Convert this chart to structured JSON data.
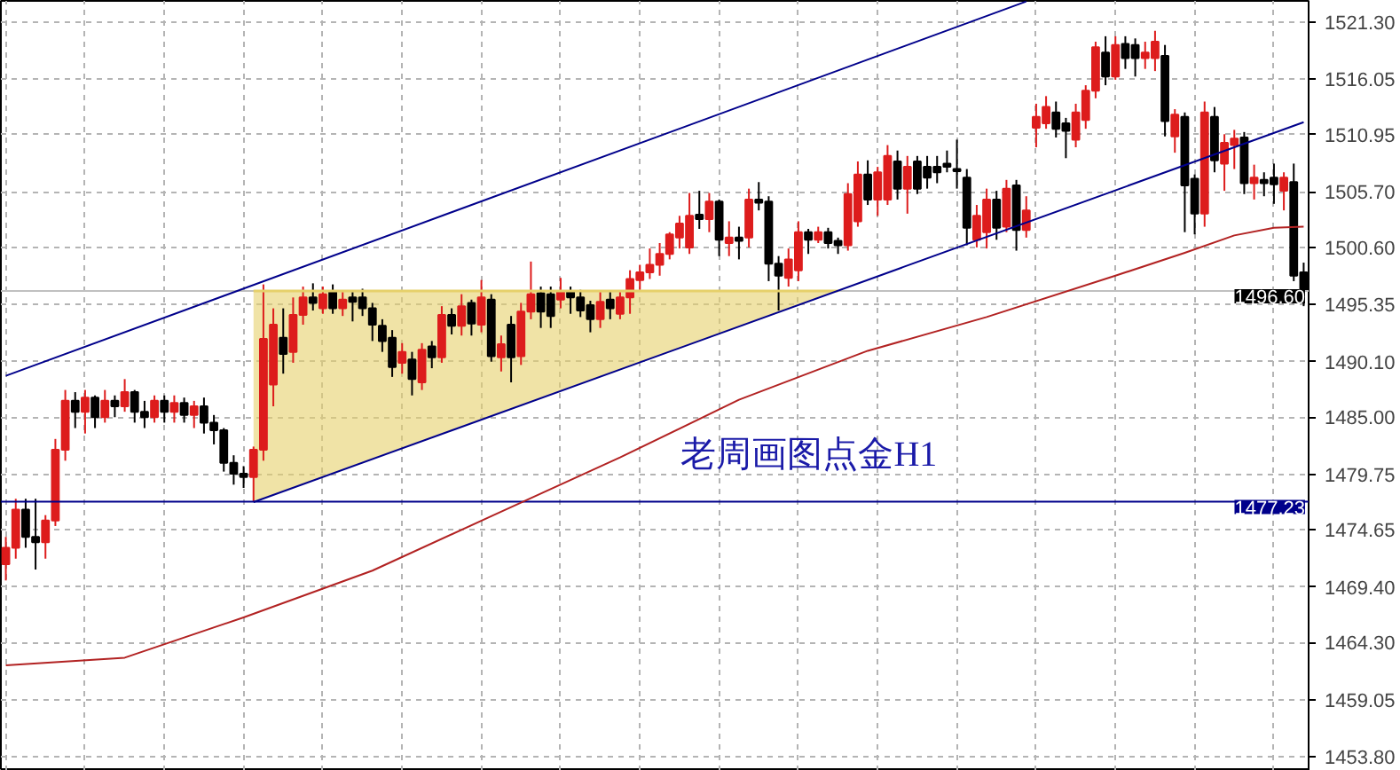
{
  "chart_data": {
    "type": "candlestick",
    "categories": [
      null,
      null,
      null,
      null,
      null,
      null,
      null,
      null,
      null,
      null,
      null,
      null,
      null,
      null,
      null,
      null,
      null,
      null,
      null,
      null,
      null,
      null,
      null,
      null,
      null,
      null,
      null,
      null,
      null,
      null,
      null,
      null,
      null,
      null,
      null,
      null,
      null,
      null,
      null,
      null,
      null,
      null,
      null,
      null,
      null,
      null,
      null,
      null,
      null,
      null,
      null,
      null,
      null,
      null,
      null,
      null,
      null,
      null,
      null,
      null,
      null,
      null,
      null,
      null,
      null,
      null,
      null,
      null,
      null,
      null,
      null,
      null,
      null,
      null,
      null,
      null,
      null,
      null,
      null,
      null,
      null,
      null,
      null,
      null,
      null,
      null,
      null,
      null,
      null,
      null,
      null,
      null,
      null,
      null,
      null,
      null,
      null,
      null,
      null,
      null,
      null,
      null,
      null,
      null,
      null,
      null,
      null,
      null,
      null,
      null,
      null,
      null,
      null,
      null,
      null,
      null,
      null,
      null,
      null,
      null,
      null,
      null,
      null,
      null,
      null,
      null,
      null,
      null,
      null,
      null,
      null,
      null
    ],
    "ohlc": [
      [
        1471.5,
        1474,
        1470,
        1473
      ],
      [
        1473,
        1477.5,
        1472,
        1476.5
      ],
      [
        1476.5,
        1477.5,
        1473,
        1474
      ],
      [
        1474,
        1477.5,
        1471,
        1473.5
      ],
      [
        1473.5,
        1476,
        1472,
        1475.5
      ],
      [
        1475.5,
        1483,
        1475,
        1482
      ],
      [
        1482,
        1487.5,
        1481,
        1486.5
      ],
      [
        1486.5,
        1487.3,
        1484,
        1485.5
      ],
      [
        1485.5,
        1487.5,
        1483.5,
        1486.8
      ],
      [
        1486.8,
        1487,
        1484,
        1485
      ],
      [
        1485,
        1487.5,
        1484.5,
        1486.5
      ],
      [
        1486.5,
        1487,
        1485,
        1486
      ],
      [
        1486,
        1488.5,
        1485.5,
        1487.3
      ],
      [
        1487.3,
        1487.5,
        1484.5,
        1485.5
      ],
      [
        1485.5,
        1486.5,
        1484,
        1485
      ],
      [
        1485,
        1487,
        1484.5,
        1486.5
      ],
      [
        1486.5,
        1487,
        1484.5,
        1485.5
      ],
      [
        1485.5,
        1487,
        1484.5,
        1486.3
      ],
      [
        1486.3,
        1486.8,
        1484.5,
        1485.2
      ],
      [
        1485.2,
        1486.5,
        1484,
        1486
      ],
      [
        1486,
        1486.8,
        1483.5,
        1484.5
      ],
      [
        1484.5,
        1485.2,
        1482.5,
        1483.8
      ],
      [
        1483.8,
        1484,
        1480,
        1480.8
      ],
      [
        1480.8,
        1481.5,
        1478.8,
        1479.8
      ],
      [
        1479.8,
        1480.5,
        1478.5,
        1479.5
      ],
      [
        1479.5,
        1482.3,
        1477.23,
        1482
      ],
      [
        1482,
        1497.2,
        1481,
        1492.2
      ],
      [
        1488,
        1495,
        1486,
        1493.5
      ],
      [
        1492.3,
        1495,
        1489,
        1490.8
      ],
      [
        1491,
        1496,
        1490,
        1494.4
      ],
      [
        1494.4,
        1497,
        1493.5,
        1496
      ],
      [
        1496,
        1497.3,
        1494.8,
        1495.5
      ],
      [
        1495,
        1497,
        1494.5,
        1496.3
      ],
      [
        1496.5,
        1497.2,
        1494.5,
        1495
      ],
      [
        1495,
        1496.5,
        1494.3,
        1495.8
      ],
      [
        1496,
        1496.5,
        1493.8,
        1495.6
      ],
      [
        1496,
        1496.8,
        1494.3,
        1495
      ],
      [
        1495,
        1495.5,
        1492,
        1493.5
      ],
      [
        1493.4,
        1494,
        1491,
        1492
      ],
      [
        1492.3,
        1493,
        1488.7,
        1489.6
      ],
      [
        1490,
        1491.8,
        1489,
        1491
      ],
      [
        1490.3,
        1491,
        1487,
        1488.5
      ],
      [
        1488.2,
        1491.8,
        1487.5,
        1491.2
      ],
      [
        1491.5,
        1492,
        1489.5,
        1490.5
      ],
      [
        1490.5,
        1495.2,
        1490,
        1494.4
      ],
      [
        1494.4,
        1495,
        1492.6,
        1493.4
      ],
      [
        1493.4,
        1496.3,
        1492.5,
        1495.2
      ],
      [
        1495.5,
        1495.8,
        1492.5,
        1493.6
      ],
      [
        1493.5,
        1497.6,
        1492.8,
        1496
      ],
      [
        1495.8,
        1496.3,
        1490.1,
        1490.6
      ],
      [
        1490.5,
        1492.5,
        1489.2,
        1491.7
      ],
      [
        1493.5,
        1494.3,
        1488.2,
        1490.5
      ],
      [
        1490.6,
        1495.5,
        1489.8,
        1494.7
      ],
      [
        1494.7,
        1499.3,
        1494,
        1496.3
      ],
      [
        1496.4,
        1497,
        1493.2,
        1494.7
      ],
      [
        1496.3,
        1497,
        1493.2,
        1494.3
      ],
      [
        1495.8,
        1497.8,
        1495,
        1496.6
      ],
      [
        1496.5,
        1497,
        1494.5,
        1496
      ],
      [
        1496,
        1496.7,
        1494.2,
        1494.8
      ],
      [
        1495.3,
        1495.7,
        1492.8,
        1494
      ],
      [
        1494,
        1496.5,
        1493.2,
        1495.6
      ],
      [
        1495.8,
        1496.5,
        1494,
        1495
      ],
      [
        1494.5,
        1496.5,
        1494,
        1496
      ],
      [
        1496,
        1498.5,
        1494.5,
        1497.7
      ],
      [
        1497.6,
        1499,
        1496.7,
        1498.3
      ],
      [
        1498.3,
        1500.5,
        1497.7,
        1499
      ],
      [
        1499,
        1501,
        1498,
        1500
      ],
      [
        1500,
        1502,
        1499.5,
        1501.8
      ],
      [
        1501.5,
        1503.5,
        1500.5,
        1502.8
      ],
      [
        1500.6,
        1505.6,
        1500,
        1503.5
      ],
      [
        1503.6,
        1505.8,
        1502.3,
        1503.2
      ],
      [
        1503.2,
        1505.6,
        1502,
        1504.8
      ],
      [
        1504.8,
        1505,
        1499.8,
        1501.3
      ],
      [
        1501,
        1503,
        1499.8,
        1501.5
      ],
      [
        1501.5,
        1502.5,
        1499.5,
        1501.2
      ],
      [
        1501.5,
        1506,
        1500.6,
        1505
      ],
      [
        1505,
        1506.6,
        1504,
        1504.7
      ],
      [
        1504.8,
        1505.3,
        1497.5,
        1499.1
      ],
      [
        1499.1,
        1499.8,
        1494.8,
        1498
      ],
      [
        1497.8,
        1500.5,
        1497,
        1499.5
      ],
      [
        1498.5,
        1503,
        1497.5,
        1502
      ],
      [
        1502,
        1502.3,
        1500,
        1501.3
      ],
      [
        1501.3,
        1502.5,
        1501,
        1502
      ],
      [
        1502,
        1502.4,
        1500.5,
        1501
      ],
      [
        1501.2,
        1501.5,
        1500,
        1500.8
      ],
      [
        1500.8,
        1506.5,
        1500.3,
        1505.5
      ],
      [
        1503,
        1508.5,
        1502.5,
        1507.3
      ],
      [
        1507.3,
        1508.6,
        1504.5,
        1505
      ],
      [
        1505,
        1508,
        1503.5,
        1507.5
      ],
      [
        1505,
        1510,
        1504.5,
        1509
      ],
      [
        1508.5,
        1509.5,
        1505,
        1506
      ],
      [
        1506,
        1509,
        1503.7,
        1508
      ],
      [
        1508.5,
        1509,
        1505.5,
        1506
      ],
      [
        1508,
        1509,
        1506,
        1507
      ],
      [
        1508,
        1509,
        1506.5,
        1507.5
      ],
      [
        1508.3,
        1509.5,
        1507.5,
        1508
      ],
      [
        1507.8,
        1510.5,
        1506,
        1507.6
      ],
      [
        1507,
        1507.8,
        1500.8,
        1502.4
      ],
      [
        1501.3,
        1504.5,
        1500.6,
        1503.5
      ],
      [
        1502,
        1506,
        1500.5,
        1505
      ],
      [
        1505,
        1505.8,
        1501.3,
        1502.4
      ],
      [
        1502.5,
        1506.8,
        1502,
        1506
      ],
      [
        1506.3,
        1506.8,
        1500.3,
        1502.2
      ],
      [
        1502.2,
        1505.3,
        1501.5,
        1504
      ],
      [
        1511.6,
        1513.8,
        1509.8,
        1512.6
      ],
      [
        1512,
        1514.5,
        1511.5,
        1513.5
      ],
      [
        1513,
        1514,
        1510.7,
        1511.5
      ],
      [
        1512,
        1512.5,
        1508.8,
        1511.3
      ],
      [
        1510.5,
        1513.8,
        1509.8,
        1513
      ],
      [
        1512.3,
        1515.5,
        1511.5,
        1515
      ],
      [
        1515,
        1519.5,
        1514.3,
        1519
      ],
      [
        1518.5,
        1520,
        1515.5,
        1516.3
      ],
      [
        1516.3,
        1520,
        1516,
        1519.2
      ],
      [
        1519.3,
        1520,
        1517,
        1518
      ],
      [
        1519.2,
        1519.8,
        1516.3,
        1518
      ],
      [
        1518,
        1519.5,
        1517,
        1518.5
      ],
      [
        1518,
        1520.5,
        1516.8,
        1519.5
      ],
      [
        1518.2,
        1519.2,
        1510.8,
        1512.2
      ],
      [
        1510.8,
        1513.3,
        1509.3,
        1512.8
      ],
      [
        1512.6,
        1513,
        1502,
        1506.3
      ],
      [
        1506.9,
        1507.3,
        1501.8,
        1503.7
      ],
      [
        1503.7,
        1514,
        1502.5,
        1513
      ],
      [
        1512.6,
        1513.5,
        1507.5,
        1508.6
      ],
      [
        1508.3,
        1511,
        1505.8,
        1510.2
      ],
      [
        1510,
        1511.4,
        1507.8,
        1510.6
      ],
      [
        1510.7,
        1511.2,
        1505.5,
        1506.5
      ],
      [
        1506.5,
        1508.2,
        1505,
        1507
      ],
      [
        1506.8,
        1507.5,
        1505.3,
        1506.5
      ],
      [
        1507,
        1508.3,
        1504.6,
        1506.4
      ],
      [
        1505.8,
        1507.5,
        1504,
        1507
      ],
      [
        1506.6,
        1508.3,
        1497.5,
        1498
      ],
      [
        1498.3,
        1499.2,
        1495.2,
        1496.6
      ]
    ],
    "colors": [
      "#dd1c1c",
      "#dd1c1c",
      "#000000",
      "#000000",
      "#dd1c1c",
      "#dd1c1c",
      "#dd1c1c",
      "#000000",
      "#dd1c1c",
      "#000000",
      "#dd1c1c",
      "#000000",
      "#dd1c1c",
      "#000000",
      "#000000",
      "#dd1c1c",
      "#000000",
      "#dd1c1c",
      "#000000",
      "#dd1c1c",
      "#000000",
      "#000000",
      "#000000",
      "#000000",
      "#000000",
      "#dd1c1c",
      "#dd1c1c",
      "#dd1c1c",
      "#000000",
      "#dd1c1c",
      "#dd1c1c",
      "#000000",
      "#dd1c1c",
      "#000000",
      "#dd1c1c",
      "#000000",
      "#000000",
      "#000000",
      "#000000",
      "#000000",
      "#dd1c1c",
      "#000000",
      "#dd1c1c",
      "#000000",
      "#dd1c1c",
      "#000000",
      "#dd1c1c",
      "#000000",
      "#dd1c1c",
      "#000000",
      "#dd1c1c",
      "#000000",
      "#dd1c1c",
      "#dd1c1c",
      "#000000",
      "#000000",
      "#dd1c1c",
      "#000000",
      "#000000",
      "#000000",
      "#dd1c1c",
      "#000000",
      "#dd1c1c",
      "#dd1c1c",
      "#dd1c1c",
      "#dd1c1c",
      "#dd1c1c",
      "#dd1c1c",
      "#dd1c1c",
      "#dd1c1c",
      "#000000",
      "#dd1c1c",
      "#000000",
      "#dd1c1c",
      "#000000",
      "#dd1c1c",
      "#000000",
      "#000000",
      "#000000",
      "#dd1c1c",
      "#dd1c1c",
      "#000000",
      "#dd1c1c",
      "#000000",
      "#000000",
      "#dd1c1c",
      "#dd1c1c",
      "#000000",
      "#dd1c1c",
      "#dd1c1c",
      "#000000",
      "#dd1c1c",
      "#000000",
      "#000000",
      "#000000",
      "#000000",
      "#000000",
      "#000000",
      "#dd1c1c",
      "#dd1c1c",
      "#000000",
      "#dd1c1c",
      "#000000",
      "#dd1c1c",
      "#dd1c1c",
      "#dd1c1c",
      "#000000",
      "#000000",
      "#dd1c1c",
      "#dd1c1c",
      "#dd1c1c",
      "#000000",
      "#dd1c1c",
      "#000000",
      "#000000",
      "#dd1c1c",
      "#dd1c1c",
      "#000000",
      "#dd1c1c",
      "#000000",
      "#000000",
      "#dd1c1c",
      "#000000",
      "#dd1c1c",
      "#dd1c1c",
      "#000000",
      "#dd1c1c",
      "#000000",
      "#000000",
      "#dd1c1c",
      "#000000",
      "#000000"
    ],
    "series": [
      {
        "type": "line",
        "color": "#e6d06a",
        "upper": [
          null,
          null,
          null,
          null,
          null,
          null,
          null,
          null,
          null,
          null,
          null,
          null,
          null,
          null,
          null,
          null,
          null,
          null,
          null,
          null,
          null,
          null,
          null,
          null,
          null,
          1496.6,
          null,
          null,
          null,
          null,
          null,
          null,
          null,
          null,
          null,
          null,
          null,
          null,
          null,
          null,
          null,
          null,
          null,
          null,
          null,
          null,
          null,
          null,
          null,
          null,
          null,
          null,
          null,
          null,
          null,
          null,
          null,
          null,
          null,
          null,
          null,
          null,
          null,
          null,
          null,
          null,
          null,
          null,
          null,
          null,
          null,
          null,
          null,
          null,
          null,
          null,
          null,
          null,
          null,
          null,
          null,
          null,
          null,
          null,
          1496.6,
          null,
          null,
          null,
          null,
          null,
          null,
          null,
          null,
          null,
          null,
          null,
          null,
          null,
          null,
          null,
          null,
          null,
          null,
          null,
          null,
          null,
          null,
          null,
          null,
          null,
          null,
          null,
          null,
          null,
          null,
          null,
          null,
          null,
          null,
          null,
          null,
          null,
          null,
          null,
          null,
          null,
          null,
          null,
          null,
          null,
          null,
          null
        ],
        "values": [
          null,
          null,
          null,
          null,
          null,
          null,
          null,
          null,
          null,
          null,
          null,
          null,
          null,
          null,
          null,
          null,
          null,
          null,
          null,
          null,
          null,
          null,
          null,
          null,
          null,
          1496.6,
          null,
          null,
          null,
          null,
          null,
          null,
          null,
          null,
          null,
          null,
          null,
          null,
          null,
          null,
          null,
          null,
          null,
          null,
          null,
          null,
          null,
          null,
          null,
          null,
          null,
          null,
          null,
          null,
          null,
          null,
          null,
          null,
          null,
          null,
          null,
          null,
          null,
          null,
          null,
          null,
          null,
          null,
          null,
          null,
          null,
          null,
          null,
          null,
          null,
          null,
          null,
          null,
          null,
          null,
          null,
          null,
          null,
          null,
          1496.6,
          null,
          null,
          null,
          null,
          null,
          null,
          null,
          null,
          null,
          null,
          null,
          null,
          null,
          null,
          null,
          null,
          null,
          null,
          null,
          null,
          null,
          null,
          null,
          null,
          null,
          null,
          null,
          null,
          null,
          null,
          null,
          null,
          null,
          null,
          null,
          null,
          null,
          null,
          null,
          null,
          null,
          null,
          null,
          null,
          null,
          null,
          null
        ],
        "lower": [
          null,
          null,
          null,
          null,
          null,
          null,
          null,
          null,
          null,
          null,
          null,
          null,
          null,
          null,
          null,
          null,
          null,
          null,
          null,
          null,
          null,
          null,
          null,
          null,
          null,
          1477.2,
          null,
          null,
          null,
          null,
          null,
          null,
          null,
          null,
          null,
          null,
          null,
          null,
          null,
          null,
          null,
          null,
          null,
          null,
          null,
          null,
          null,
          null,
          null,
          null,
          null,
          null,
          null,
          null,
          null,
          null,
          null,
          null,
          null,
          null,
          null,
          null,
          null,
          null,
          null,
          null,
          null,
          null,
          null,
          null,
          null,
          null,
          null,
          null,
          null,
          null,
          null,
          null,
          null,
          null,
          null,
          null,
          null,
          null,
          1496.6,
          null,
          null,
          null,
          null,
          null,
          null,
          null,
          null,
          null,
          null,
          null,
          null,
          null,
          null,
          null,
          null,
          null,
          null,
          null,
          null,
          null,
          null,
          null,
          null,
          null,
          null,
          null,
          null,
          null,
          null,
          null,
          null,
          null,
          null,
          null,
          null,
          null,
          null,
          null,
          null,
          null,
          null,
          null,
          null,
          null,
          null,
          null
        ]
      },
      {
        "type": "line",
        "color": "#b22222",
        "values": [
          1462.2,
          null,
          null,
          null,
          null,
          null,
          null,
          null,
          null,
          null,
          null,
          null,
          1462.9,
          null,
          null,
          null,
          null,
          null,
          null,
          null,
          null,
          null,
          null,
          null,
          1466.6,
          null,
          null,
          null,
          null,
          null,
          null,
          null,
          null,
          null,
          null,
          null,
          null,
          1470.9,
          null,
          null,
          null,
          null,
          null,
          null,
          null,
          null,
          null,
          null,
          null,
          1475.9,
          null,
          null,
          null,
          null,
          null,
          null,
          null,
          null,
          null,
          null,
          null,
          null,
          1481.3,
          null,
          null,
          null,
          null,
          null,
          null,
          null,
          null,
          null,
          null,
          null,
          1486.6,
          null,
          null,
          null,
          null,
          null,
          null,
          null,
          null,
          null,
          null,
          null,
          null,
          1491.1,
          null,
          null,
          null,
          null,
          null,
          null,
          null,
          null,
          null,
          null,
          null,
          1494.2,
          null,
          null,
          null,
          null,
          null,
          null,
          null,
          null,
          null,
          null,
          null,
          null,
          1498.0,
          null,
          null,
          null,
          null,
          null,
          null,
          1500.1,
          null,
          null,
          null,
          null,
          1501.7,
          null,
          null,
          null,
          1502.4,
          null,
          null,
          1502.5
        ]
      },
      {
        "type": "line",
        "color": "#00008b",
        "values": [
          1488.8,
          null,
          null,
          null,
          null,
          null,
          null,
          null,
          null,
          null,
          null,
          null,
          null,
          null,
          null,
          null,
          null,
          null,
          null,
          null,
          null,
          null,
          null,
          null,
          null,
          null,
          null,
          null,
          null,
          null,
          null,
          null,
          null,
          null,
          null,
          null,
          null,
          null,
          null,
          null,
          null,
          null,
          null,
          null,
          null,
          null,
          null,
          null,
          null,
          null,
          null,
          null,
          null,
          null,
          null,
          null,
          null,
          null,
          null,
          null,
          null,
          null,
          null,
          null,
          null,
          null,
          null,
          null,
          null,
          null,
          null,
          null,
          null,
          null,
          null,
          null,
          null,
          null,
          null,
          null,
          null,
          null,
          null,
          null,
          null,
          null,
          null,
          null,
          null,
          null,
          null,
          null,
          null,
          null,
          null,
          null,
          null,
          null,
          null,
          null,
          null,
          null,
          null,
          1523.2,
          null,
          null,
          null,
          null,
          null,
          null,
          null,
          null,
          null,
          null,
          null,
          null,
          null,
          null,
          null,
          null,
          null,
          null,
          null,
          null,
          null,
          null,
          null,
          null,
          null,
          null,
          null,
          null
        ]
      },
      {
        "type": "line",
        "color": "#00008b",
        "values": [
          null,
          null,
          null,
          null,
          null,
          null,
          null,
          null,
          null,
          null,
          null,
          null,
          null,
          null,
          null,
          null,
          null,
          null,
          null,
          null,
          null,
          null,
          null,
          null,
          null,
          1477.2,
          null,
          null,
          null,
          null,
          null,
          null,
          null,
          null,
          null,
          null,
          null,
          null,
          null,
          null,
          null,
          null,
          null,
          null,
          null,
          null,
          null,
          null,
          null,
          null,
          null,
          null,
          null,
          null,
          null,
          null,
          null,
          null,
          null,
          null,
          null,
          null,
          null,
          null,
          null,
          null,
          null,
          null,
          null,
          null,
          null,
          null,
          null,
          null,
          null,
          null,
          null,
          null,
          null,
          null,
          null,
          null,
          null,
          null,
          null,
          null,
          null,
          null,
          null,
          null,
          null,
          null,
          null,
          null,
          null,
          null,
          null,
          null,
          null,
          null,
          null,
          null,
          null,
          null,
          null,
          null,
          null,
          null,
          null,
          null,
          null,
          null,
          null,
          null,
          null,
          null,
          null,
          null,
          null,
          null,
          null,
          null,
          null,
          null,
          null,
          null,
          null,
          null,
          null,
          null,
          null,
          1512.1
        ]
      }
    ],
    "ref_lines": [
      {
        "axis": "y",
        "value": 1496.6,
        "label": "1496.60",
        "color": "#c0c0c0"
      },
      {
        "axis": "y",
        "value": 1477.23,
        "label": "1477.23",
        "color": "#00008b"
      }
    ],
    "annotations": [
      "老周画图点金H1"
    ],
    "ylim": [
      1452.5,
      1523.25
    ],
    "yticks": [
      {
        "value": 1521.3,
        "label": "1521.30"
      },
      {
        "value": 1516.05,
        "label": "1516.05"
      },
      {
        "value": 1510.95,
        "label": "1510.95"
      },
      {
        "value": 1505.7,
        "label": "1505.70"
      },
      {
        "value": 1500.6,
        "label": "1500.60"
      },
      {
        "value": 1495.35,
        "label": "1495.35"
      },
      {
        "value": 1490.1,
        "label": "1490.10"
      },
      {
        "value": 1485.0,
        "label": "1485.00"
      },
      {
        "value": 1479.75,
        "label": "1479.75"
      },
      {
        "value": 1474.65,
        "label": "1474.65"
      },
      {
        "value": 1469.4,
        "label": "1469.40"
      },
      {
        "value": 1464.3,
        "label": "1464.30"
      },
      {
        "value": 1459.05,
        "label": "1459.05"
      },
      {
        "value": 1453.8,
        "label": "1453.80"
      }
    ],
    "tick_labels": "y",
    "grid": true,
    "line_style": "solid"
  }
}
